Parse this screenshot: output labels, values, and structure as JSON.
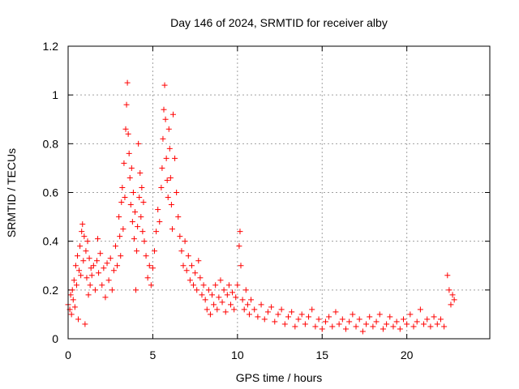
{
  "chart_data": {
    "type": "scatter",
    "title": "Day 146 of 2024, SRMTID for receiver alby",
    "xlabel": "GPS time / hours",
    "ylabel": "SRMTID / TECUs",
    "xlim": [
      0,
      24.9
    ],
    "ylim": [
      0,
      1.2
    ],
    "xticks": [
      0,
      5,
      10,
      15,
      20
    ],
    "xtick_labels": [
      "0",
      "5",
      "10",
      "15",
      "20"
    ],
    "yticks": [
      0,
      0.2,
      0.4,
      0.6,
      0.8,
      1.0,
      1.2
    ],
    "ytick_labels": [
      "0",
      "0.2",
      "0.4",
      "0.6",
      "0.8",
      "1",
      "1.2"
    ],
    "grid": true,
    "marker": "+",
    "color": "#ff0000",
    "series": [
      {
        "name": "SRMTID",
        "points": [
          [
            0.0,
            0.14
          ],
          [
            0.1,
            0.12
          ],
          [
            0.15,
            0.18
          ],
          [
            0.2,
            0.1
          ],
          [
            0.25,
            0.2
          ],
          [
            0.3,
            0.16
          ],
          [
            0.35,
            0.24
          ],
          [
            0.4,
            0.13
          ],
          [
            0.45,
            0.3
          ],
          [
            0.5,
            0.22
          ],
          [
            0.55,
            0.34
          ],
          [
            0.6,
            0.08
          ],
          [
            0.65,
            0.28
          ],
          [
            0.7,
            0.38
          ],
          [
            0.75,
            0.26
          ],
          [
            0.8,
            0.44
          ],
          [
            0.85,
            0.47
          ],
          [
            0.9,
            0.32
          ],
          [
            0.95,
            0.42
          ],
          [
            1.0,
            0.06
          ],
          [
            1.05,
            0.36
          ],
          [
            1.1,
            0.25
          ],
          [
            1.15,
            0.4
          ],
          [
            1.2,
            0.18
          ],
          [
            1.25,
            0.33
          ],
          [
            1.3,
            0.22
          ],
          [
            1.35,
            0.29
          ],
          [
            1.4,
            0.26
          ],
          [
            1.5,
            0.3
          ],
          [
            1.6,
            0.2
          ],
          [
            1.7,
            0.32
          ],
          [
            1.75,
            0.41
          ],
          [
            1.8,
            0.27
          ],
          [
            1.9,
            0.35
          ],
          [
            2.0,
            0.22
          ],
          [
            2.1,
            0.29
          ],
          [
            2.2,
            0.17
          ],
          [
            2.3,
            0.31
          ],
          [
            2.4,
            0.24
          ],
          [
            2.5,
            0.33
          ],
          [
            2.6,
            0.2
          ],
          [
            2.7,
            0.28
          ],
          [
            2.8,
            0.38
          ],
          [
            2.9,
            0.3
          ],
          [
            3.0,
            0.5
          ],
          [
            3.05,
            0.42
          ],
          [
            3.1,
            0.34
          ],
          [
            3.15,
            0.56
          ],
          [
            3.2,
            0.62
          ],
          [
            3.25,
            0.45
          ],
          [
            3.3,
            0.72
          ],
          [
            3.35,
            0.58
          ],
          [
            3.4,
            0.86
          ],
          [
            3.45,
            0.96
          ],
          [
            3.5,
            1.05
          ],
          [
            3.55,
            0.84
          ],
          [
            3.6,
            0.76
          ],
          [
            3.65,
            0.66
          ],
          [
            3.7,
            0.55
          ],
          [
            3.75,
            0.7
          ],
          [
            3.8,
            0.48
          ],
          [
            3.85,
            0.6
          ],
          [
            3.9,
            0.41
          ],
          [
            3.95,
            0.52
          ],
          [
            4.0,
            0.2
          ],
          [
            4.05,
            0.36
          ],
          [
            4.1,
            0.46
          ],
          [
            4.15,
            0.8
          ],
          [
            4.2,
            0.58
          ],
          [
            4.25,
            0.68
          ],
          [
            4.3,
            0.5
          ],
          [
            4.35,
            0.62
          ],
          [
            4.4,
            0.44
          ],
          [
            4.45,
            0.56
          ],
          [
            4.5,
            0.4
          ],
          [
            4.6,
            0.34
          ],
          [
            4.7,
            0.25
          ],
          [
            4.8,
            0.3
          ],
          [
            4.9,
            0.22
          ],
          [
            5.0,
            0.29
          ],
          [
            5.1,
            0.36
          ],
          [
            5.2,
            0.44
          ],
          [
            5.3,
            0.53
          ],
          [
            5.4,
            0.48
          ],
          [
            5.5,
            0.62
          ],
          [
            5.55,
            0.7
          ],
          [
            5.6,
            0.82
          ],
          [
            5.65,
            0.94
          ],
          [
            5.7,
            1.04
          ],
          [
            5.75,
            0.9
          ],
          [
            5.8,
            0.74
          ],
          [
            5.85,
            0.65
          ],
          [
            5.9,
            0.58
          ],
          [
            5.95,
            0.86
          ],
          [
            6.0,
            0.78
          ],
          [
            6.05,
            0.66
          ],
          [
            6.1,
            0.55
          ],
          [
            6.15,
            0.45
          ],
          [
            6.2,
            0.92
          ],
          [
            6.3,
            0.74
          ],
          [
            6.4,
            0.6
          ],
          [
            6.5,
            0.5
          ],
          [
            6.6,
            0.42
          ],
          [
            6.7,
            0.36
          ],
          [
            6.8,
            0.3
          ],
          [
            6.9,
            0.4
          ],
          [
            7.0,
            0.28
          ],
          [
            7.1,
            0.34
          ],
          [
            7.2,
            0.24
          ],
          [
            7.3,
            0.3
          ],
          [
            7.4,
            0.22
          ],
          [
            7.5,
            0.27
          ],
          [
            7.6,
            0.2
          ],
          [
            7.7,
            0.32
          ],
          [
            7.8,
            0.25
          ],
          [
            7.9,
            0.18
          ],
          [
            8.0,
            0.22
          ],
          [
            8.1,
            0.16
          ],
          [
            8.2,
            0.12
          ],
          [
            8.3,
            0.2
          ],
          [
            8.4,
            0.1
          ],
          [
            8.5,
            0.18
          ],
          [
            8.6,
            0.14
          ],
          [
            8.7,
            0.22
          ],
          [
            8.8,
            0.12
          ],
          [
            8.9,
            0.17
          ],
          [
            9.0,
            0.24
          ],
          [
            9.1,
            0.15
          ],
          [
            9.2,
            0.2
          ],
          [
            9.3,
            0.11
          ],
          [
            9.4,
            0.18
          ],
          [
            9.5,
            0.22
          ],
          [
            9.6,
            0.14
          ],
          [
            9.7,
            0.19
          ],
          [
            9.8,
            0.12
          ],
          [
            9.9,
            0.17
          ],
          [
            10.0,
            0.22
          ],
          [
            10.1,
            0.38
          ],
          [
            10.15,
            0.44
          ],
          [
            10.2,
            0.3
          ],
          [
            10.3,
            0.16
          ],
          [
            10.4,
            0.12
          ],
          [
            10.5,
            0.2
          ],
          [
            10.6,
            0.14
          ],
          [
            10.7,
            0.1
          ],
          [
            10.8,
            0.16
          ],
          [
            11.0,
            0.12
          ],
          [
            11.2,
            0.09
          ],
          [
            11.4,
            0.14
          ],
          [
            11.6,
            0.08
          ],
          [
            11.8,
            0.11
          ],
          [
            12.0,
            0.13
          ],
          [
            12.2,
            0.07
          ],
          [
            12.4,
            0.1
          ],
          [
            12.6,
            0.12
          ],
          [
            12.8,
            0.06
          ],
          [
            13.0,
            0.09
          ],
          [
            13.2,
            0.11
          ],
          [
            13.4,
            0.05
          ],
          [
            13.6,
            0.08
          ],
          [
            13.8,
            0.1
          ],
          [
            14.0,
            0.06
          ],
          [
            14.2,
            0.09
          ],
          [
            14.4,
            0.12
          ],
          [
            14.6,
            0.05
          ],
          [
            14.8,
            0.08
          ],
          [
            15.0,
            0.04
          ],
          [
            15.2,
            0.07
          ],
          [
            15.4,
            0.09
          ],
          [
            15.6,
            0.05
          ],
          [
            15.8,
            0.11
          ],
          [
            16.0,
            0.06
          ],
          [
            16.2,
            0.08
          ],
          [
            16.4,
            0.04
          ],
          [
            16.6,
            0.07
          ],
          [
            16.8,
            0.1
          ],
          [
            17.0,
            0.05
          ],
          [
            17.2,
            0.08
          ],
          [
            17.4,
            0.03
          ],
          [
            17.6,
            0.06
          ],
          [
            17.8,
            0.09
          ],
          [
            18.0,
            0.05
          ],
          [
            18.2,
            0.07
          ],
          [
            18.4,
            0.1
          ],
          [
            18.6,
            0.04
          ],
          [
            18.8,
            0.06
          ],
          [
            19.0,
            0.09
          ],
          [
            19.2,
            0.05
          ],
          [
            19.4,
            0.07
          ],
          [
            19.6,
            0.04
          ],
          [
            19.8,
            0.08
          ],
          [
            20.0,
            0.06
          ],
          [
            20.2,
            0.1
          ],
          [
            20.4,
            0.05
          ],
          [
            20.6,
            0.07
          ],
          [
            20.8,
            0.12
          ],
          [
            21.0,
            0.06
          ],
          [
            21.2,
            0.08
          ],
          [
            21.4,
            0.05
          ],
          [
            21.6,
            0.09
          ],
          [
            21.8,
            0.06
          ],
          [
            22.0,
            0.08
          ],
          [
            22.2,
            0.05
          ],
          [
            22.4,
            0.26
          ],
          [
            22.5,
            0.2
          ],
          [
            22.6,
            0.14
          ],
          [
            22.7,
            0.18
          ],
          [
            22.8,
            0.16
          ]
        ]
      }
    ]
  }
}
